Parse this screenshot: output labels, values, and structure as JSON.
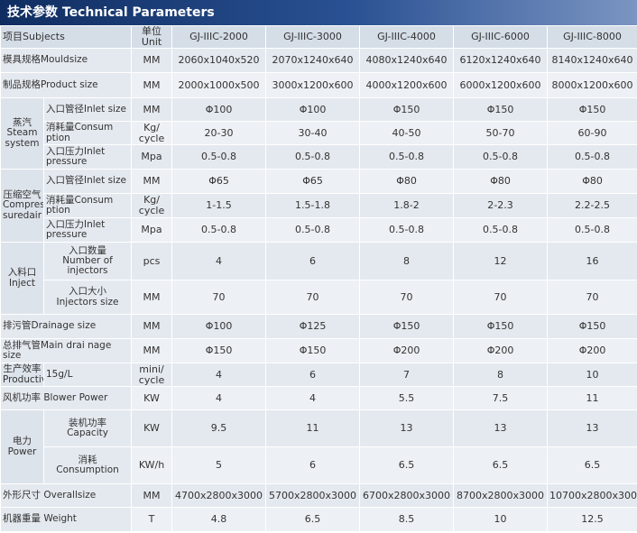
{
  "header": {
    "title": "技术参数 Technical Parameters"
  },
  "table": {
    "columns": [
      "项目Subjects",
      "单位Unit",
      "GJ-IIIC-2000",
      "GJ-IIIC-3000",
      "GJ-IIIC-4000",
      "GJ-IIIC-6000",
      "GJ-IIIC-8000"
    ],
    "sections": [
      {
        "rows": [
          {
            "item": "模具规格Mouldsize",
            "unit": "MM",
            "values": [
              "2060x1040x520",
              "2070x1240x640",
              "4080x1240x640",
              "6120x1240x640",
              "8140x1240x640"
            ]
          }
        ]
      },
      {
        "rows": [
          {
            "item": "制品规格Product size",
            "unit": "MM",
            "values": [
              "2000x1000x500",
              "3000x1200x600",
              "4000x1200x600",
              "6000x1200x600",
              "8000x1200x600"
            ]
          }
        ]
      },
      {
        "label": "蒸汽\nSteam\nsystem",
        "rows": [
          {
            "item": "入口管径Inlet size",
            "unit": "MM",
            "values": [
              "Φ100",
              "Φ100",
              "Φ150",
              "Φ150",
              "Φ150"
            ]
          },
          {
            "item": "消耗量Consum ption",
            "unit": "Kg/\ncycle",
            "values": [
              "20-30",
              "30-40",
              "40-50",
              "50-70",
              "60-90"
            ]
          },
          {
            "item": "入口压力Inlet pressure",
            "unit": "Mpa",
            "values": [
              "0.5-0.8",
              "0.5-0.8",
              "0.5-0.8",
              "0.5-0.8",
              "0.5-0.8"
            ]
          }
        ]
      },
      {
        "label": "压缩空气\nCompres\nsuredair",
        "rows": [
          {
            "item": "入口管径Inlet size",
            "unit": "MM",
            "values": [
              "Φ65",
              "Φ65",
              "Φ80",
              "Φ80",
              "Φ80"
            ]
          },
          {
            "item": "消耗量Consum ption",
            "unit": "Kg/\ncycle",
            "values": [
              "1-1.5",
              "1.5-1.8",
              "1.8-2",
              "2-2.3",
              "2.2-2.5"
            ]
          },
          {
            "item": "入口压力Inlet pressure",
            "unit": "Mpa",
            "values": [
              "0.5-0.8",
              "0.5-0.8",
              "0.5-0.8",
              "0.5-0.8",
              "0.5-0.8"
            ]
          }
        ]
      },
      {
        "label": "入料口\nInject",
        "rows": [
          {
            "item": "入口数量\nNumber of injectors",
            "unit": "pcs",
            "values": [
              "4",
              "6",
              "8",
              "12",
              "16"
            ]
          },
          {
            "item": "入口大小\nInjectors size",
            "unit": "MM",
            "values": [
              "70",
              "70",
              "70",
              "70",
              "70"
            ]
          }
        ]
      },
      {
        "rows": [
          {
            "item": "排污管Drainage size",
            "unit": "MM",
            "values": [
              "Φ100",
              "Φ125",
              "Φ150",
              "Φ150",
              "Φ150"
            ]
          }
        ]
      },
      {
        "rows": [
          {
            "item": "总排气管Main drai nage size",
            "unit": "MM",
            "values": [
              "Φ150",
              "Φ150",
              "Φ200",
              "Φ200",
              "Φ200"
            ]
          }
        ]
      },
      {
        "label": "生产效率\nProductivity",
        "rows": [
          {
            "item": "15g/L",
            "unit": "mini/\ncycle",
            "values": [
              "4",
              "6",
              "7",
              "8",
              "10"
            ]
          }
        ]
      },
      {
        "rows": [
          {
            "item": "风机功率 Blower Power",
            "unit": "KW",
            "values": [
              "4",
              "4",
              "5.5",
              "7.5",
              "11"
            ]
          }
        ]
      },
      {
        "label": "电力\nPower",
        "rows": [
          {
            "item": "装机功率\nCapacity",
            "unit": "KW",
            "values": [
              "9.5",
              "11",
              "13",
              "13",
              "13"
            ]
          },
          {
            "item": "消耗\nConsumption",
            "unit": "KW/h",
            "values": [
              "5",
              "6",
              "6.5",
              "6.5",
              "6.5"
            ]
          }
        ]
      },
      {
        "rows": [
          {
            "item": "外形尺寸 Overallsize",
            "unit": "MM",
            "values": [
              "4700x2800x3000",
              "5700x2800x3000",
              "6700x2800x3000",
              "8700x2800x3000",
              "10700x2800x3000"
            ]
          }
        ]
      },
      {
        "rows": [
          {
            "item": "机器重量 Weight",
            "unit": "T",
            "values": [
              "4.8",
              "6.5",
              "8.5",
              "10",
              "12.5"
            ]
          }
        ]
      }
    ]
  }
}
